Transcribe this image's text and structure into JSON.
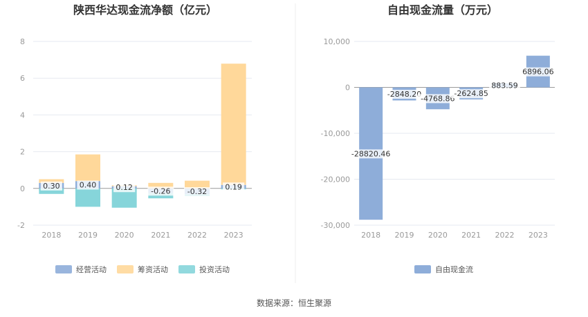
{
  "source": "数据来源：恒生聚源",
  "chart_data": [
    {
      "type": "bar",
      "stacked": true,
      "title": "陕西华达现金流净额（亿元）",
      "categories": [
        "2018",
        "2019",
        "2020",
        "2021",
        "2022",
        "2023"
      ],
      "ylim": [
        -2,
        8
      ],
      "yticks": [
        -2,
        0,
        2,
        4,
        6,
        8
      ],
      "grid": true,
      "legend_position": "bottom",
      "series": [
        {
          "name": "经营活动",
          "color": "#8eadd9",
          "values": [
            0.3,
            0.4,
            0.12,
            -0.26,
            -0.32,
            0.19
          ]
        },
        {
          "name": "筹资活动",
          "color": "#ffd89a",
          "values": [
            0.2,
            1.45,
            0.05,
            0.3,
            0.42,
            6.6
          ]
        },
        {
          "name": "投资活动",
          "color": "#86d5da",
          "values": [
            -0.3,
            -1.0,
            -1.05,
            -0.28,
            -0.1,
            -0.05
          ]
        }
      ],
      "data_labels": [
        "0.30",
        "0.40",
        "0.12",
        "-0.26",
        "-0.32",
        "0.19"
      ]
    },
    {
      "type": "bar",
      "style": "waterfall",
      "title": "自由现金流量（万元）",
      "categories": [
        "2018",
        "2019",
        "2020",
        "2021",
        "2022",
        "2023"
      ],
      "ylim": [
        -30000,
        10000
      ],
      "yticks": [
        -30000,
        -20000,
        -10000,
        0,
        10000
      ],
      "ytick_labels": [
        "-30,000",
        "-20,000",
        "-10,000",
        "0",
        "10,000"
      ],
      "grid": true,
      "legend_position": "bottom",
      "series": [
        {
          "name": "自由现金流",
          "color": "#8eadd9",
          "values": [
            -28820.46,
            -2848.2,
            -4768.86,
            -2624.85,
            883.59,
            6896.06
          ]
        }
      ],
      "data_labels": [
        "-28820.46",
        "-2848.20",
        "-4768.86",
        "-2624.85",
        "883.59",
        "6896.06"
      ]
    }
  ]
}
